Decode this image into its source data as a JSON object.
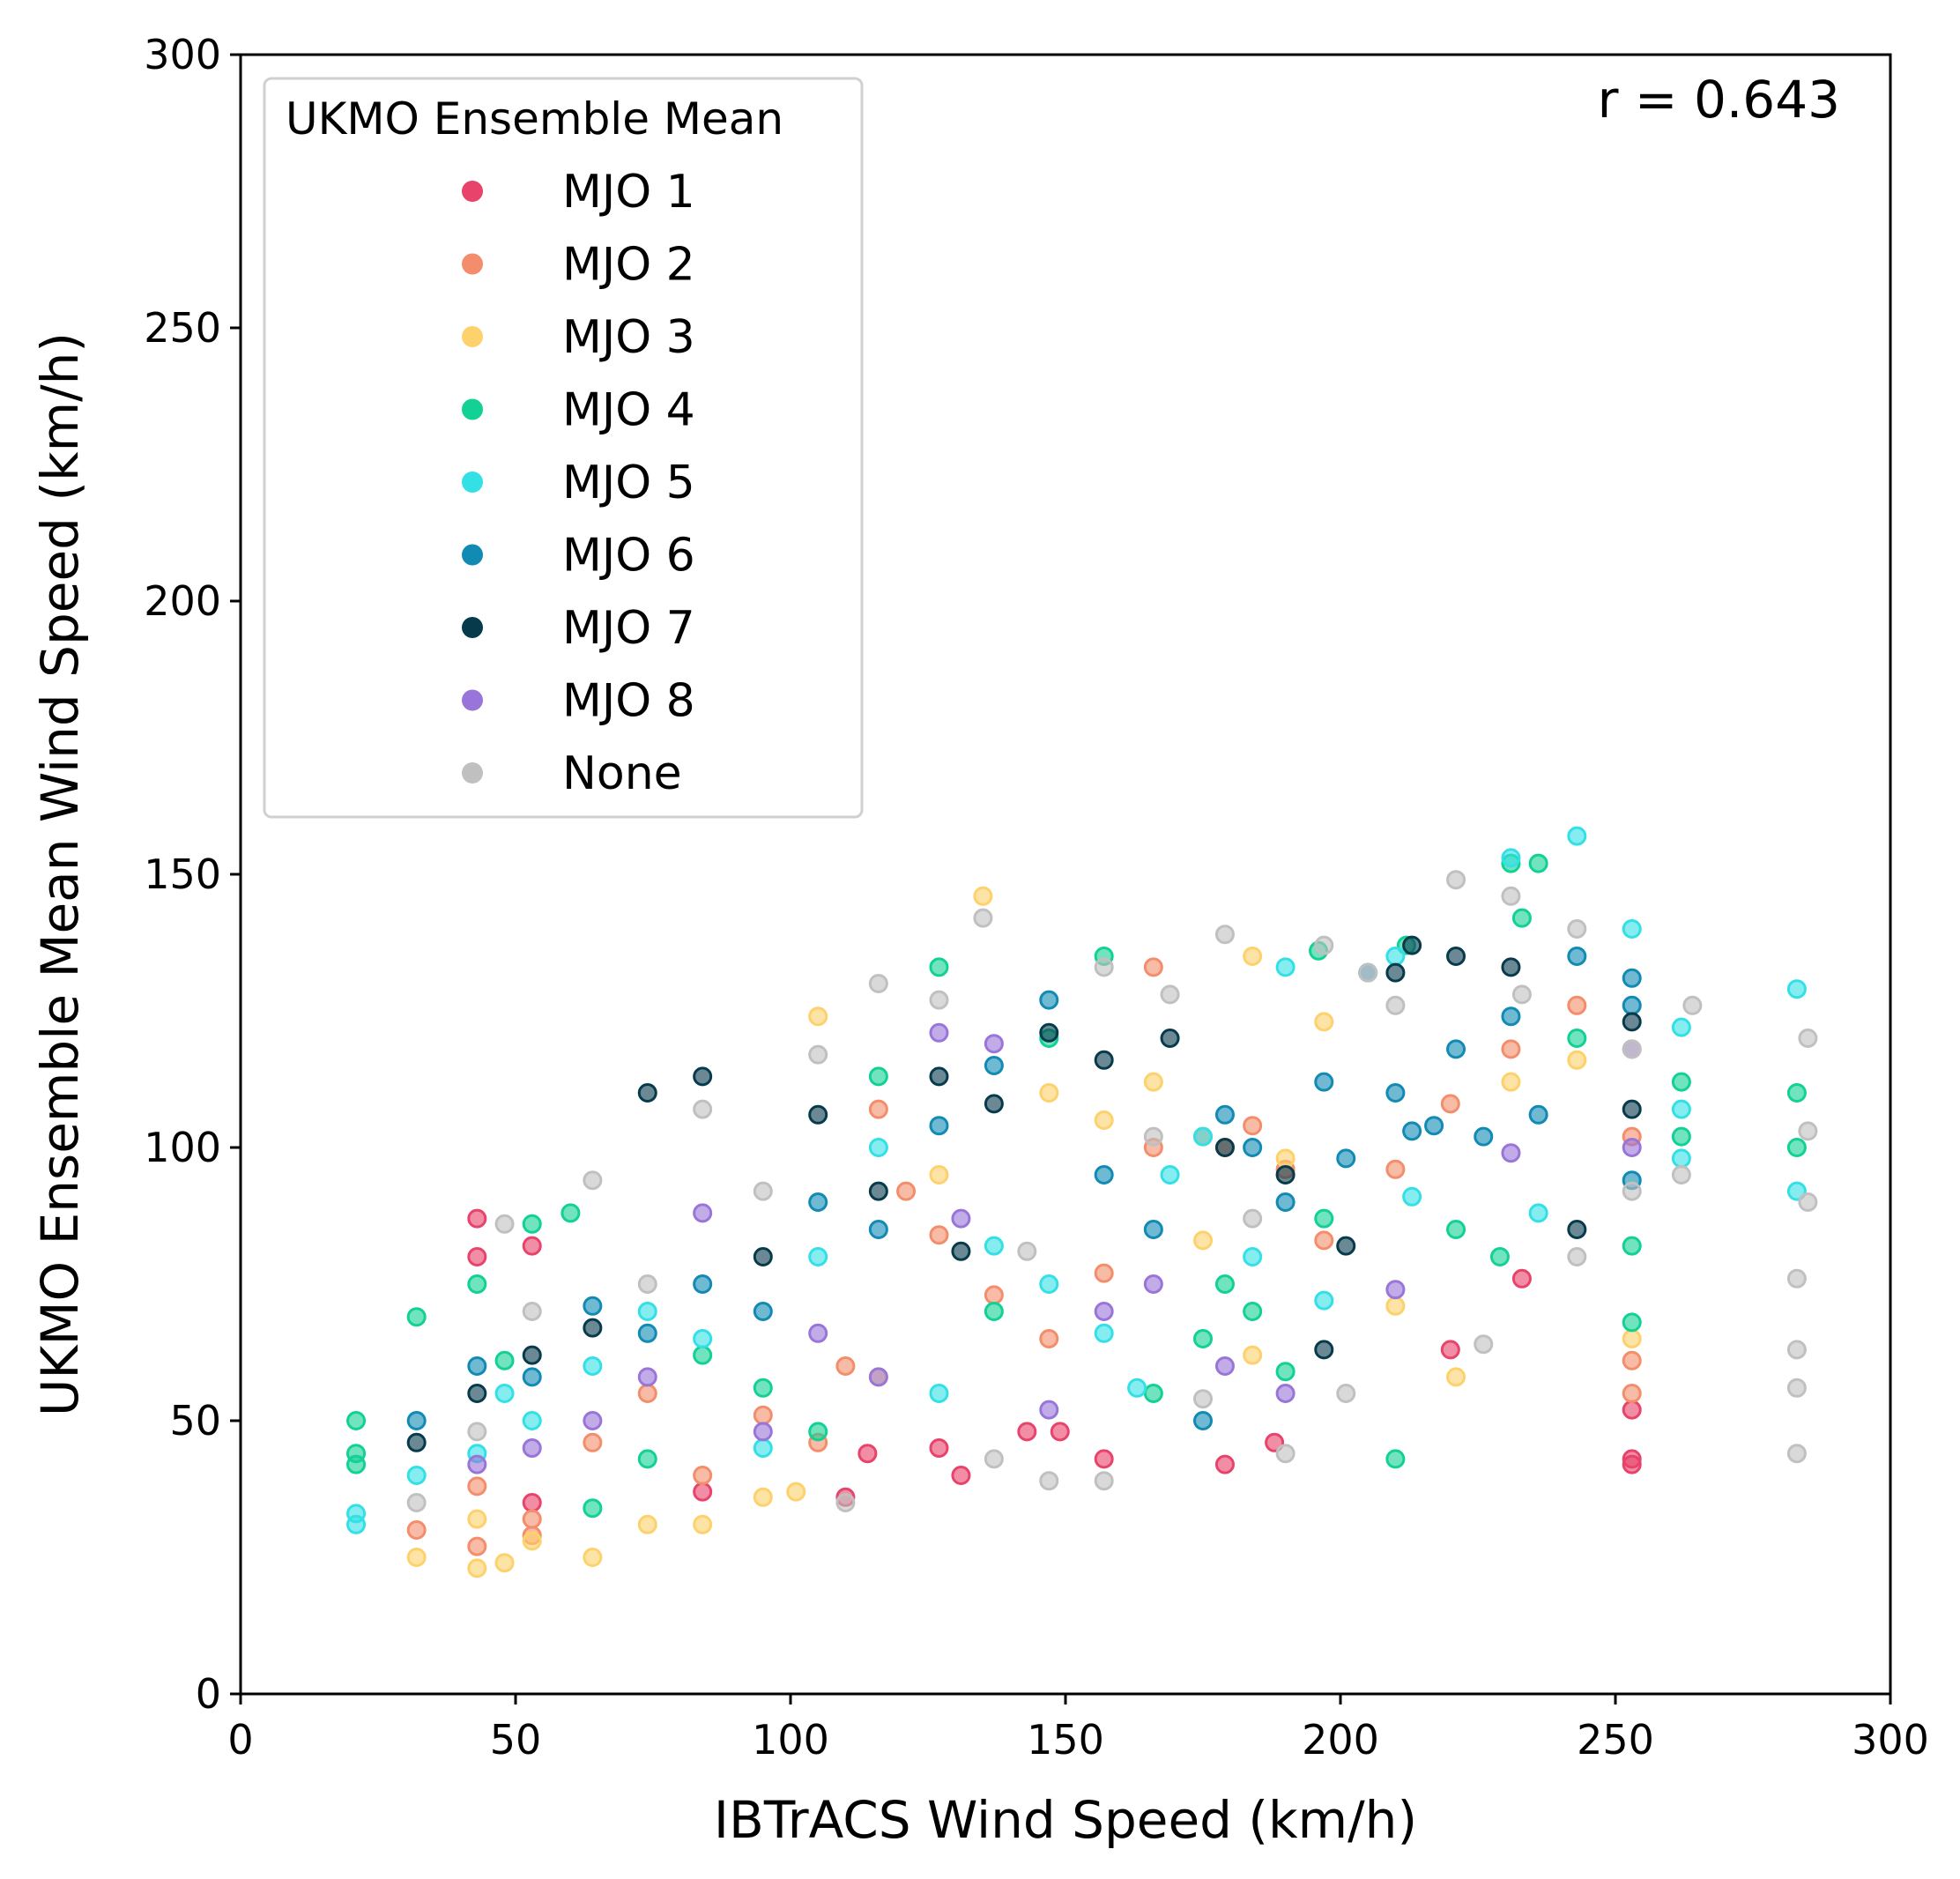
{
  "chart_data": {
    "type": "scatter",
    "title": "",
    "xlabel": "IBTrACS Wind Speed (km/h)",
    "ylabel": "UKMO Ensemble Mean Wind Speed (km/h)",
    "xlim": [
      0,
      300
    ],
    "ylim": [
      0,
      300
    ],
    "xticks": [
      0,
      50,
      100,
      150,
      200,
      250,
      300
    ],
    "yticks": [
      0,
      50,
      100,
      150,
      200,
      250,
      300
    ],
    "grid": false,
    "annotation": "r = 0.643",
    "legend": {
      "title": "UKMO Ensemble Mean",
      "placement": "top-left",
      "entries": [
        "MJO 1",
        "MJO 2",
        "MJO 3",
        "MJO 4",
        "MJO 5",
        "MJO 6",
        "MJO 7",
        "MJO 8",
        "None"
      ]
    },
    "series": [
      {
        "name": "MJO 1",
        "color": "#e8436a",
        "points": [
          [
            43,
            80
          ],
          [
            43,
            87
          ],
          [
            53,
            82
          ],
          [
            53,
            35
          ],
          [
            84,
            37
          ],
          [
            110,
            36
          ],
          [
            114,
            44
          ],
          [
            127,
            45
          ],
          [
            131,
            40
          ],
          [
            143,
            48
          ],
          [
            149,
            48
          ],
          [
            157,
            43
          ],
          [
            179,
            42
          ],
          [
            188,
            46
          ],
          [
            220,
            63
          ],
          [
            233,
            76
          ],
          [
            253,
            42
          ],
          [
            253,
            52
          ],
          [
            253,
            43
          ]
        ]
      },
      {
        "name": "MJO 2",
        "color": "#f48d6b",
        "points": [
          [
            32,
            30
          ],
          [
            43,
            38
          ],
          [
            43,
            27
          ],
          [
            53,
            29
          ],
          [
            53,
            32
          ],
          [
            64,
            46
          ],
          [
            74,
            55
          ],
          [
            84,
            40
          ],
          [
            95,
            51
          ],
          [
            105,
            46
          ],
          [
            110,
            60
          ],
          [
            116,
            107
          ],
          [
            121,
            92
          ],
          [
            127,
            84
          ],
          [
            137,
            73
          ],
          [
            147,
            65
          ],
          [
            157,
            77
          ],
          [
            166,
            100
          ],
          [
            166,
            133
          ],
          [
            175,
            102
          ],
          [
            179,
            100
          ],
          [
            184,
            104
          ],
          [
            190,
            96
          ],
          [
            197,
            83
          ],
          [
            210,
            96
          ],
          [
            220,
            108
          ],
          [
            231,
            118
          ],
          [
            243,
            126
          ],
          [
            253,
            102
          ],
          [
            253,
            55
          ],
          [
            253,
            61
          ]
        ]
      },
      {
        "name": "MJO 3",
        "color": "#fdd16b",
        "points": [
          [
            32,
            25
          ],
          [
            43,
            23
          ],
          [
            43,
            32
          ],
          [
            48,
            24
          ],
          [
            53,
            28
          ],
          [
            64,
            25
          ],
          [
            74,
            31
          ],
          [
            84,
            31
          ],
          [
            95,
            36
          ],
          [
            101,
            37
          ],
          [
            105,
            124
          ],
          [
            116,
            58
          ],
          [
            127,
            95
          ],
          [
            135,
            146
          ],
          [
            147,
            110
          ],
          [
            157,
            105
          ],
          [
            166,
            112
          ],
          [
            175,
            83
          ],
          [
            184,
            62
          ],
          [
            184,
            135
          ],
          [
            190,
            98
          ],
          [
            197,
            123
          ],
          [
            210,
            71
          ],
          [
            221,
            58
          ],
          [
            231,
            112
          ],
          [
            243,
            116
          ],
          [
            253,
            65
          ]
        ]
      },
      {
        "name": "MJO 4",
        "color": "#12d194",
        "points": [
          [
            21,
            50
          ],
          [
            21,
            42
          ],
          [
            21,
            44
          ],
          [
            32,
            69
          ],
          [
            43,
            75
          ],
          [
            48,
            61
          ],
          [
            53,
            86
          ],
          [
            60,
            88
          ],
          [
            64,
            34
          ],
          [
            74,
            43
          ],
          [
            84,
            62
          ],
          [
            95,
            56
          ],
          [
            105,
            48
          ],
          [
            116,
            113
          ],
          [
            127,
            133
          ],
          [
            137,
            70
          ],
          [
            147,
            120
          ],
          [
            157,
            135
          ],
          [
            166,
            55
          ],
          [
            175,
            65
          ],
          [
            179,
            75
          ],
          [
            184,
            70
          ],
          [
            190,
            59
          ],
          [
            196,
            136
          ],
          [
            197,
            87
          ],
          [
            210,
            43
          ],
          [
            212,
            137
          ],
          [
            221,
            85
          ],
          [
            229,
            80
          ],
          [
            231,
            152
          ],
          [
            233,
            142
          ],
          [
            236,
            152
          ],
          [
            243,
            120
          ],
          [
            253,
            82
          ],
          [
            253,
            68
          ],
          [
            262,
            112
          ],
          [
            262,
            102
          ],
          [
            283,
            110
          ],
          [
            283,
            100
          ]
        ]
      },
      {
        "name": "MJO 5",
        "color": "#33e0e5",
        "points": [
          [
            21,
            33
          ],
          [
            21,
            31
          ],
          [
            32,
            40
          ],
          [
            43,
            44
          ],
          [
            48,
            55
          ],
          [
            53,
            50
          ],
          [
            64,
            60
          ],
          [
            74,
            70
          ],
          [
            84,
            65
          ],
          [
            95,
            45
          ],
          [
            105,
            80
          ],
          [
            116,
            100
          ],
          [
            127,
            55
          ],
          [
            137,
            82
          ],
          [
            147,
            75
          ],
          [
            157,
            66
          ],
          [
            163,
            56
          ],
          [
            169,
            95
          ],
          [
            175,
            102
          ],
          [
            184,
            80
          ],
          [
            190,
            133
          ],
          [
            197,
            72
          ],
          [
            210,
            135
          ],
          [
            213,
            91
          ],
          [
            231,
            153
          ],
          [
            236,
            88
          ],
          [
            243,
            157
          ],
          [
            253,
            140
          ],
          [
            262,
            98
          ],
          [
            262,
            107
          ],
          [
            262,
            122
          ],
          [
            283,
            92
          ],
          [
            283,
            129
          ]
        ]
      },
      {
        "name": "MJO 6",
        "color": "#118ab4",
        "points": [
          [
            32,
            50
          ],
          [
            43,
            60
          ],
          [
            53,
            58
          ],
          [
            64,
            71
          ],
          [
            74,
            66
          ],
          [
            84,
            75
          ],
          [
            95,
            70
          ],
          [
            105,
            90
          ],
          [
            116,
            85
          ],
          [
            127,
            104
          ],
          [
            137,
            115
          ],
          [
            147,
            127
          ],
          [
            157,
            95
          ],
          [
            166,
            85
          ],
          [
            175,
            50
          ],
          [
            179,
            106
          ],
          [
            184,
            100
          ],
          [
            190,
            90
          ],
          [
            197,
            112
          ],
          [
            201,
            98
          ],
          [
            205,
            132
          ],
          [
            210,
            110
          ],
          [
            213,
            103
          ],
          [
            217,
            104
          ],
          [
            221,
            118
          ],
          [
            226,
            102
          ],
          [
            231,
            124
          ],
          [
            236,
            106
          ],
          [
            243,
            135
          ],
          [
            253,
            131
          ],
          [
            253,
            126
          ],
          [
            253,
            94
          ]
        ]
      },
      {
        "name": "MJO 7",
        "color": "#073b4c",
        "points": [
          [
            32,
            46
          ],
          [
            43,
            55
          ],
          [
            53,
            62
          ],
          [
            64,
            67
          ],
          [
            74,
            110
          ],
          [
            84,
            113
          ],
          [
            95,
            80
          ],
          [
            105,
            106
          ],
          [
            116,
            92
          ],
          [
            127,
            113
          ],
          [
            131,
            81
          ],
          [
            137,
            108
          ],
          [
            147,
            121
          ],
          [
            157,
            116
          ],
          [
            169,
            120
          ],
          [
            179,
            100
          ],
          [
            190,
            95
          ],
          [
            197,
            63
          ],
          [
            201,
            82
          ],
          [
            210,
            132
          ],
          [
            213,
            137
          ],
          [
            221,
            135
          ],
          [
            231,
            133
          ],
          [
            243,
            85
          ],
          [
            253,
            123
          ],
          [
            253,
            107
          ]
        ]
      },
      {
        "name": "MJO 8",
        "color": "#9a75d9",
        "points": [
          [
            43,
            42
          ],
          [
            53,
            45
          ],
          [
            64,
            50
          ],
          [
            74,
            58
          ],
          [
            84,
            88
          ],
          [
            95,
            48
          ],
          [
            105,
            66
          ],
          [
            116,
            58
          ],
          [
            127,
            121
          ],
          [
            131,
            87
          ],
          [
            137,
            119
          ],
          [
            147,
            52
          ],
          [
            157,
            70
          ],
          [
            166,
            75
          ],
          [
            179,
            60
          ],
          [
            190,
            55
          ],
          [
            210,
            74
          ],
          [
            231,
            99
          ],
          [
            253,
            118
          ],
          [
            253,
            100
          ]
        ]
      },
      {
        "name": "None",
        "color": "#c0c0c0",
        "points": [
          [
            32,
            35
          ],
          [
            43,
            48
          ],
          [
            48,
            86
          ],
          [
            53,
            70
          ],
          [
            64,
            94
          ],
          [
            74,
            75
          ],
          [
            84,
            107
          ],
          [
            95,
            92
          ],
          [
            105,
            117
          ],
          [
            110,
            35
          ],
          [
            116,
            130
          ],
          [
            127,
            127
          ],
          [
            135,
            142
          ],
          [
            137,
            43
          ],
          [
            143,
            81
          ],
          [
            147,
            39
          ],
          [
            157,
            39
          ],
          [
            157,
            133
          ],
          [
            166,
            102
          ],
          [
            169,
            128
          ],
          [
            175,
            54
          ],
          [
            179,
            139
          ],
          [
            184,
            87
          ],
          [
            190,
            44
          ],
          [
            197,
            137
          ],
          [
            201,
            55
          ],
          [
            205,
            132
          ],
          [
            210,
            126
          ],
          [
            221,
            149
          ],
          [
            226,
            64
          ],
          [
            231,
            146
          ],
          [
            233,
            128
          ],
          [
            243,
            140
          ],
          [
            243,
            80
          ],
          [
            253,
            92
          ],
          [
            253,
            118
          ],
          [
            262,
            95
          ],
          [
            264,
            126
          ],
          [
            283,
            44
          ],
          [
            283,
            56
          ],
          [
            283,
            63
          ],
          [
            283,
            76
          ],
          [
            285,
            103
          ],
          [
            285,
            120
          ],
          [
            285,
            90
          ]
        ]
      }
    ]
  }
}
